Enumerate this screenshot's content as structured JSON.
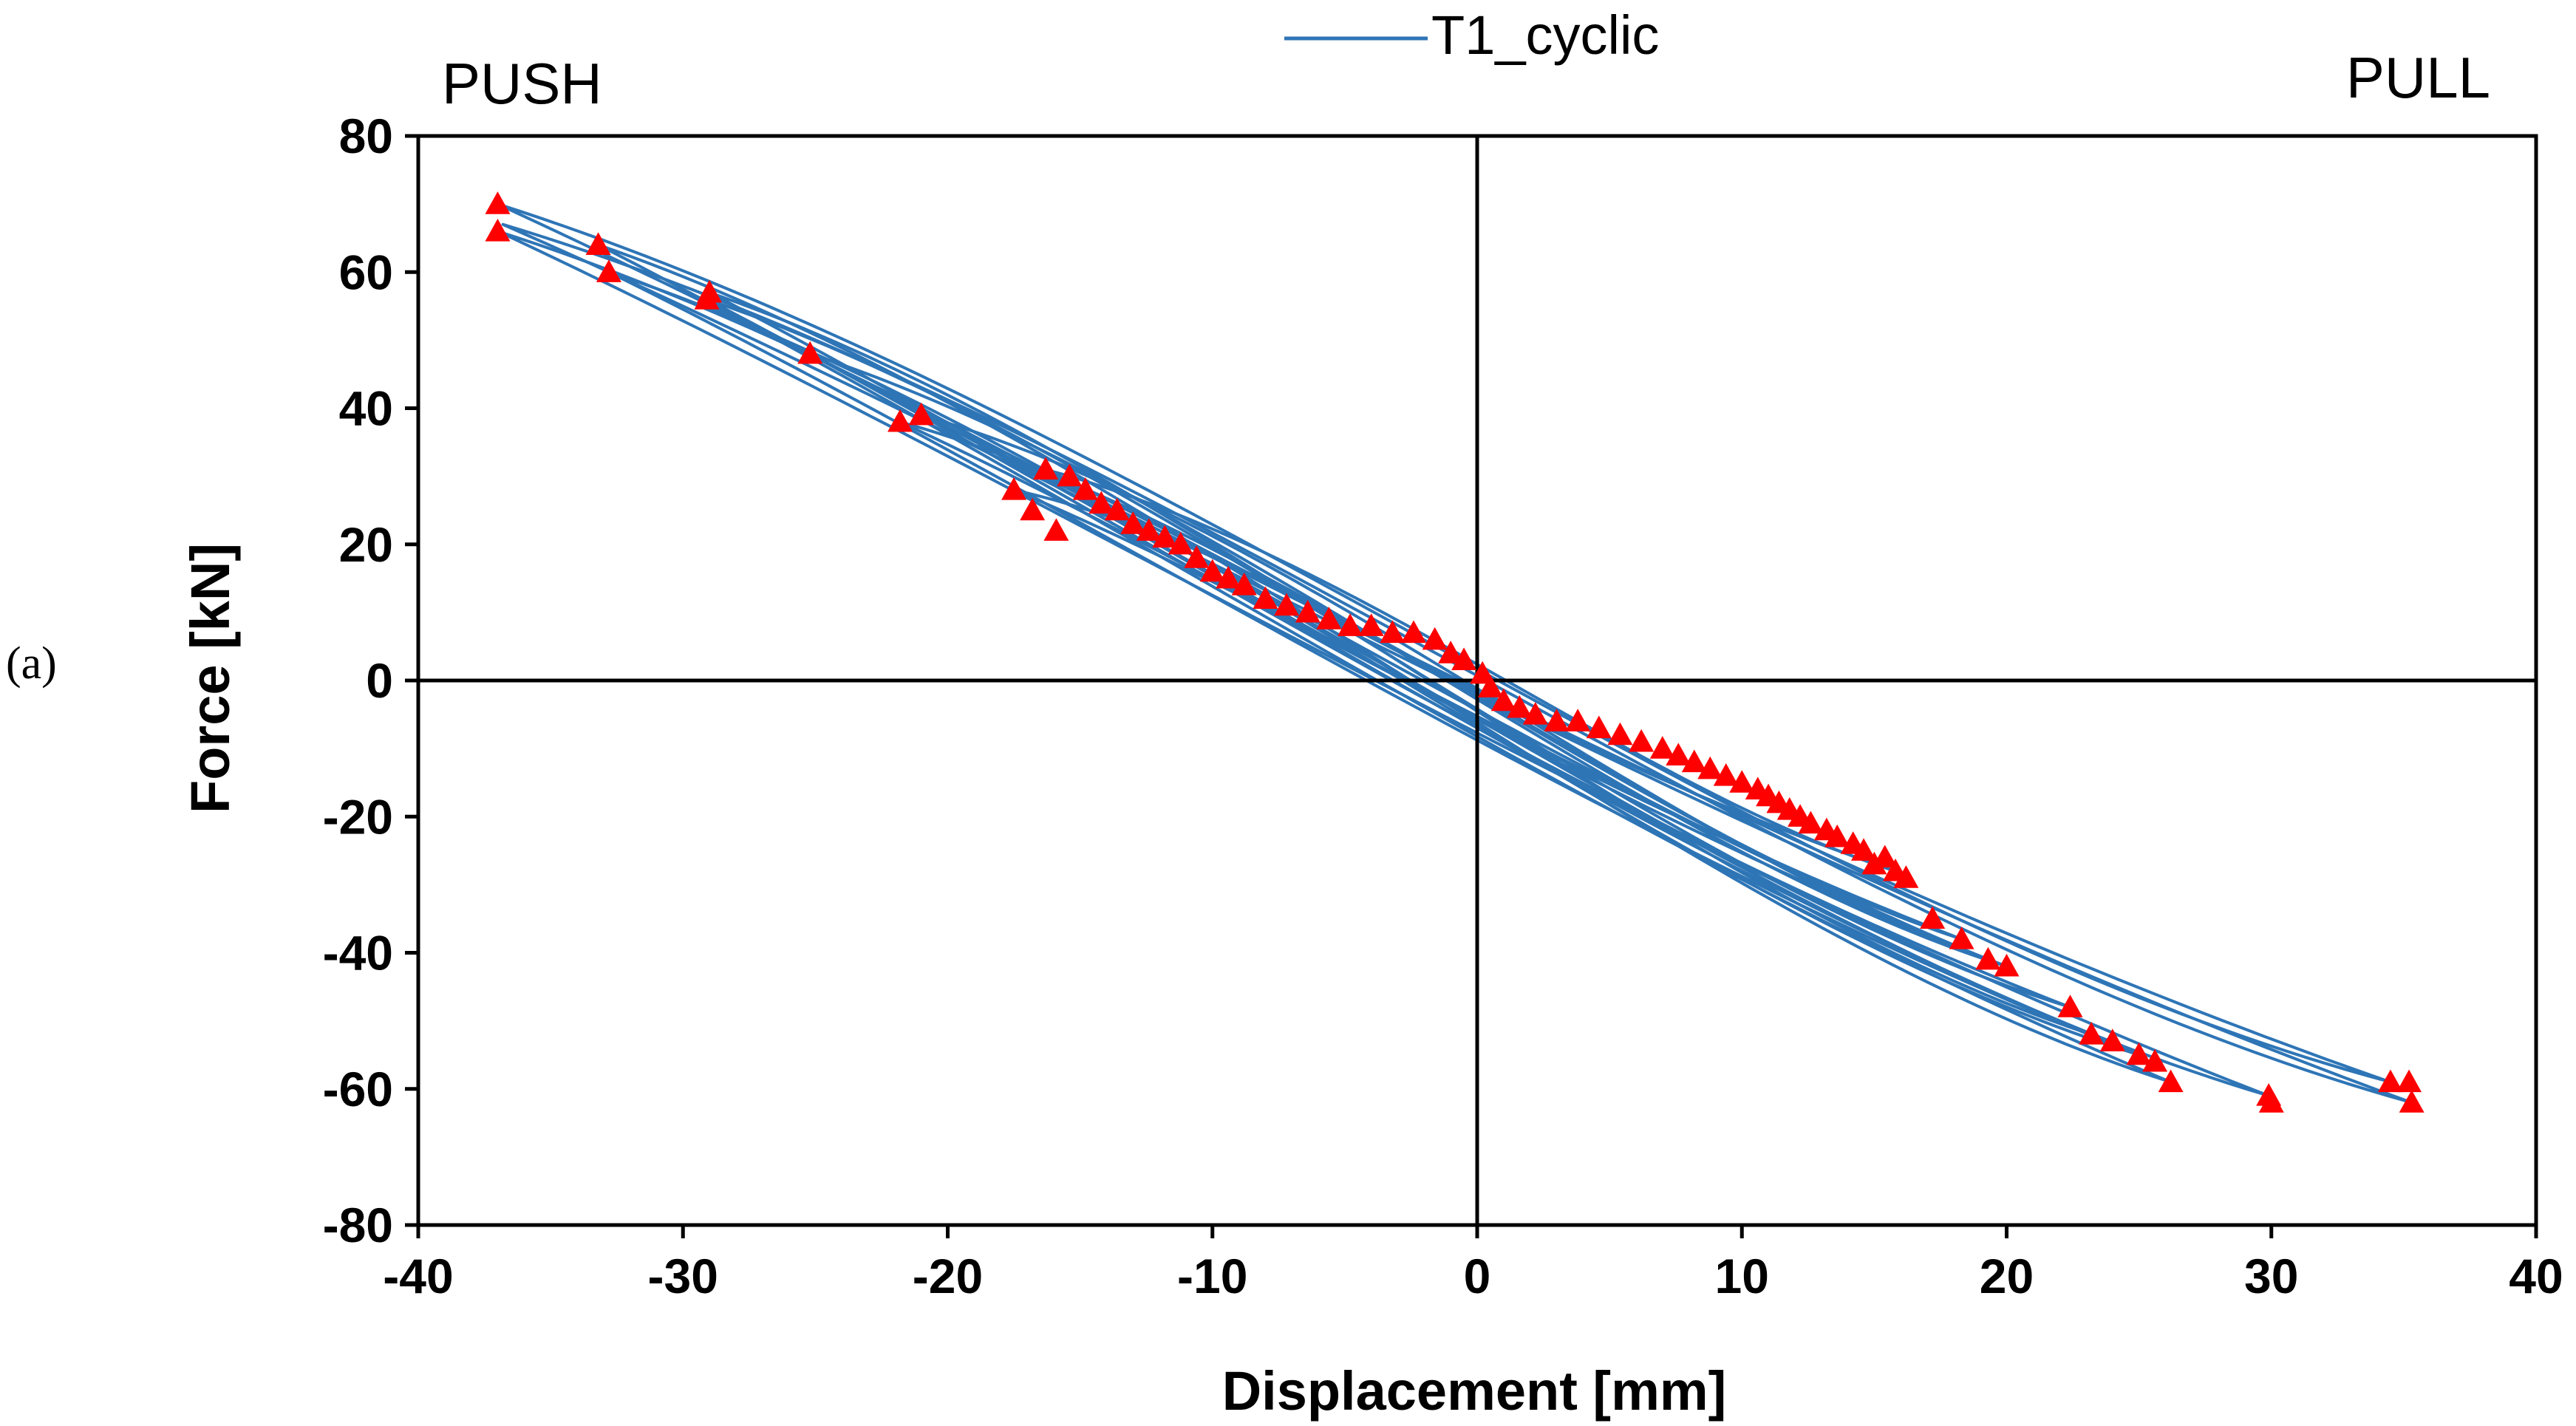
{
  "panel_label": "(a)",
  "chart_data": {
    "type": "line",
    "title": "",
    "xlabel": "Displacement [mm]",
    "ylabel": "Force [kN]",
    "xlim": [
      -40,
      40
    ],
    "ylim": [
      -80,
      80
    ],
    "x_ticks": [
      -40,
      -30,
      -20,
      -10,
      0,
      10,
      20,
      30,
      40
    ],
    "y_ticks": [
      -80,
      -60,
      -40,
      -20,
      0,
      20,
      40,
      60,
      80
    ],
    "x_tick_labels": [
      "-40",
      "-30",
      "-20",
      "-10",
      "0",
      "10",
      "20",
      "30",
      "40"
    ],
    "y_tick_labels": [
      "-80",
      "-60",
      "-40",
      "-20",
      "0",
      "20",
      "40",
      "60",
      "80"
    ],
    "corner_labels": {
      "left": "PUSH",
      "right": "PULL"
    },
    "legend": {
      "position": "top-center",
      "entries": [
        "T1_cyclic"
      ]
    },
    "series_color": "#2E75B6",
    "marker_color": "#FF0000",
    "grid": false,
    "reference_lines": {
      "x": 0,
      "y": 0
    },
    "series": [
      {
        "name": "T1_cyclic",
        "cycles": [
          {
            "peak_push": [
              -16.3,
              31
            ],
            "peak_pull": [
              15.8,
              -28
            ]
          },
          {
            "peak_push": [
              -17.5,
              28
            ],
            "peak_pull": [
              16.2,
              -35
            ]
          },
          {
            "peak_push": [
              -21.8,
              38
            ],
            "peak_pull": [
              18.3,
              -38
            ]
          },
          {
            "peak_push": [
              -21.0,
              39
            ],
            "peak_pull": [
              19.3,
              -41
            ]
          },
          {
            "peak_push": [
              -25.2,
              48
            ],
            "peak_pull": [
              20.0,
              -42
            ]
          },
          {
            "peak_push": [
              -29.1,
              56
            ],
            "peak_pull": [
              22.4,
              -48
            ]
          },
          {
            "peak_push": [
              -29.0,
              57
            ],
            "peak_pull": [
              23.2,
              -52
            ]
          },
          {
            "peak_push": [
              -32.8,
              60
            ],
            "peak_pull": [
              25.0,
              -55
            ]
          },
          {
            "peak_push": [
              -33.2,
              64
            ],
            "peak_pull": [
              26.2,
              -59
            ]
          },
          {
            "peak_push": [
              -37.0,
              66
            ],
            "peak_pull": [
              29.9,
              -61
            ]
          },
          {
            "peak_push": [
              -37.0,
              70
            ],
            "peak_pull": [
              34.5,
              -59
            ]
          },
          {
            "peak_push": [
              -36.8,
              67
            ],
            "peak_pull": [
              35.3,
              -62
            ]
          }
        ],
        "markers": [
          [
            -37.0,
            70
          ],
          [
            -37.0,
            66
          ],
          [
            -33.2,
            64
          ],
          [
            -32.8,
            60
          ],
          [
            -29.1,
            56
          ],
          [
            -29.0,
            57
          ],
          [
            -25.2,
            48
          ],
          [
            -21.8,
            38
          ],
          [
            -21.0,
            39
          ],
          [
            -17.5,
            28
          ],
          [
            -16.8,
            25
          ],
          [
            -16.3,
            31
          ],
          [
            -15.9,
            22
          ],
          [
            -15.4,
            30
          ],
          [
            -14.8,
            28
          ],
          [
            -14.2,
            26
          ],
          [
            -13.6,
            25
          ],
          [
            -13.0,
            23
          ],
          [
            -12.4,
            22
          ],
          [
            -11.8,
            21
          ],
          [
            -11.2,
            20
          ],
          [
            -10.6,
            18
          ],
          [
            -10.0,
            16
          ],
          [
            -9.4,
            15
          ],
          [
            -8.8,
            14
          ],
          [
            -8.0,
            12
          ],
          [
            -7.2,
            11
          ],
          [
            -6.4,
            10
          ],
          [
            -5.6,
            9
          ],
          [
            -4.8,
            8
          ],
          [
            -4.0,
            8
          ],
          [
            -3.2,
            7
          ],
          [
            -2.4,
            7
          ],
          [
            -1.6,
            6
          ],
          [
            -1.0,
            4
          ],
          [
            -0.5,
            3
          ],
          [
            0.2,
            1
          ],
          [
            0.5,
            -1
          ],
          [
            1.0,
            -3
          ],
          [
            1.6,
            -4
          ],
          [
            2.2,
            -5
          ],
          [
            3.0,
            -6
          ],
          [
            3.8,
            -6
          ],
          [
            4.6,
            -7
          ],
          [
            5.4,
            -8
          ],
          [
            6.2,
            -9
          ],
          [
            7.0,
            -10
          ],
          [
            7.6,
            -11
          ],
          [
            8.2,
            -12
          ],
          [
            8.8,
            -13
          ],
          [
            9.4,
            -14
          ],
          [
            10.0,
            -15
          ],
          [
            10.6,
            -16
          ],
          [
            11.0,
            -17
          ],
          [
            11.4,
            -18
          ],
          [
            11.8,
            -19
          ],
          [
            12.2,
            -20
          ],
          [
            12.6,
            -21
          ],
          [
            13.2,
            -22
          ],
          [
            13.6,
            -23
          ],
          [
            14.2,
            -24
          ],
          [
            14.6,
            -25
          ],
          [
            15.0,
            -27
          ],
          [
            15.4,
            -26
          ],
          [
            15.8,
            -28
          ],
          [
            16.2,
            -29
          ],
          [
            17.2,
            -35
          ],
          [
            18.3,
            -38
          ],
          [
            19.3,
            -41
          ],
          [
            20.0,
            -42
          ],
          [
            22.4,
            -48
          ],
          [
            23.2,
            -52
          ],
          [
            24.0,
            -53
          ],
          [
            25.0,
            -55
          ],
          [
            25.6,
            -56
          ],
          [
            26.2,
            -59
          ],
          [
            29.9,
            -61
          ],
          [
            30.0,
            -62
          ],
          [
            34.5,
            -59
          ],
          [
            35.2,
            -59
          ],
          [
            35.3,
            -62
          ]
        ]
      }
    ]
  }
}
